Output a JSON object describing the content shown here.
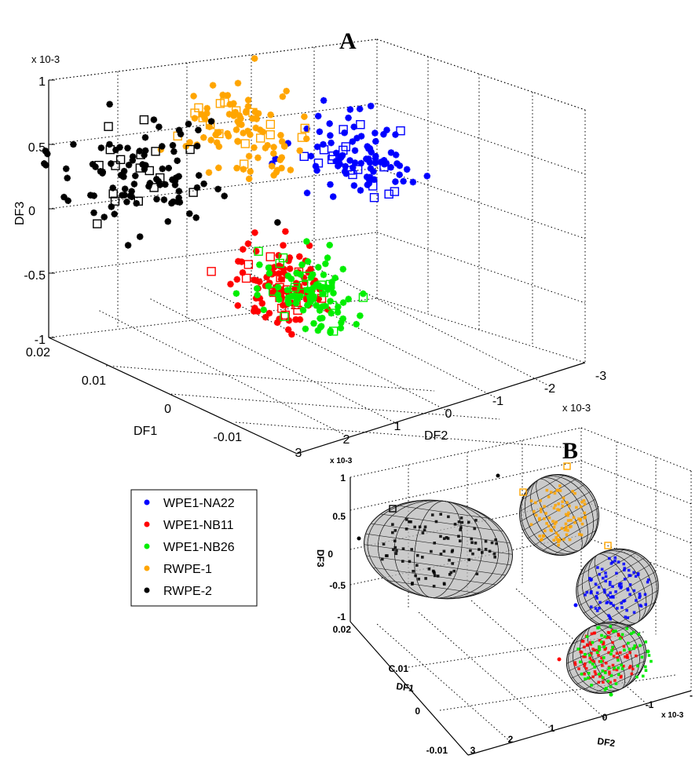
{
  "chart_data": [
    {
      "panel": "A",
      "type": "scatter",
      "projection": "3d",
      "axes": {
        "x": {
          "label": "DF1",
          "ticks": [
            "-0.01",
            "0",
            "0.01",
            "0.02"
          ],
          "range": [
            -0.015,
            0.02
          ]
        },
        "y": {
          "label": "DF2",
          "ticks": [
            "3",
            "2",
            "1",
            "0",
            "-1",
            "-2",
            "-3"
          ],
          "range": [
            -3,
            3
          ],
          "exponent": "x 10-3"
        },
        "z": {
          "label": "DF3",
          "ticks": [
            "-1",
            "-0.5",
            "0",
            "0.5",
            "1"
          ],
          "range": [
            -1,
            1
          ],
          "exponent": "x 10-3"
        }
      },
      "grid": true,
      "series": [
        {
          "name": "WPE1-NA22",
          "color": "#0000ff",
          "center": {
            "df1": 0.005,
            "df2": -1.2,
            "df3": 0.3
          }
        },
        {
          "name": "WPE1-NB11",
          "color": "#ff0000",
          "center": {
            "df1": 0.006,
            "df2": 0.2,
            "df3": -0.55
          }
        },
        {
          "name": "WPE1-NB26",
          "color": "#00ee00",
          "center": {
            "df1": 0.004,
            "df2": -0.1,
            "df3": -0.6
          }
        },
        {
          "name": "RWPE-1",
          "color": "#ffa500",
          "center": {
            "df1": 0.012,
            "df2": 0.2,
            "df3": 0.5
          }
        },
        {
          "name": "RWPE-2",
          "color": "#000000",
          "center": {
            "df1": 0.017,
            "df2": 1.6,
            "df3": 0.2
          }
        }
      ],
      "markers": {
        "training": "star",
        "test": "open-square"
      }
    },
    {
      "panel": "B",
      "type": "scatter",
      "projection": "3d",
      "overlay": "confidence ellipsoids",
      "axes": {
        "x": {
          "label": "DF1",
          "ticks": [
            "-0.01",
            "0",
            "C.01",
            "0.02"
          ]
        },
        "y": {
          "label": "DF2",
          "ticks": [
            "3",
            "2",
            "1",
            "0",
            "-1",
            "-"
          ],
          "exponent": "x 10-3"
        },
        "z": {
          "label": "DF3",
          "ticks": [
            "-1",
            "-0.5",
            "0",
            "0.5",
            "1"
          ],
          "exponent": "x 10-3"
        }
      },
      "series": [
        "WPE1-NA22",
        "WPE1-NB11",
        "WPE1-NB26",
        "RWPE-1",
        "RWPE-2"
      ]
    }
  ],
  "legend": [
    {
      "label": "WPE1-NA22",
      "color": "#0000ff"
    },
    {
      "label": "WPE1-NB11",
      "color": "#ff0000"
    },
    {
      "label": "WPE1-NB26",
      "color": "#00ee00"
    },
    {
      "label": "RWPE-1",
      "color": "#ffa500"
    },
    {
      "label": "RWPE-2",
      "color": "#000000"
    }
  ]
}
